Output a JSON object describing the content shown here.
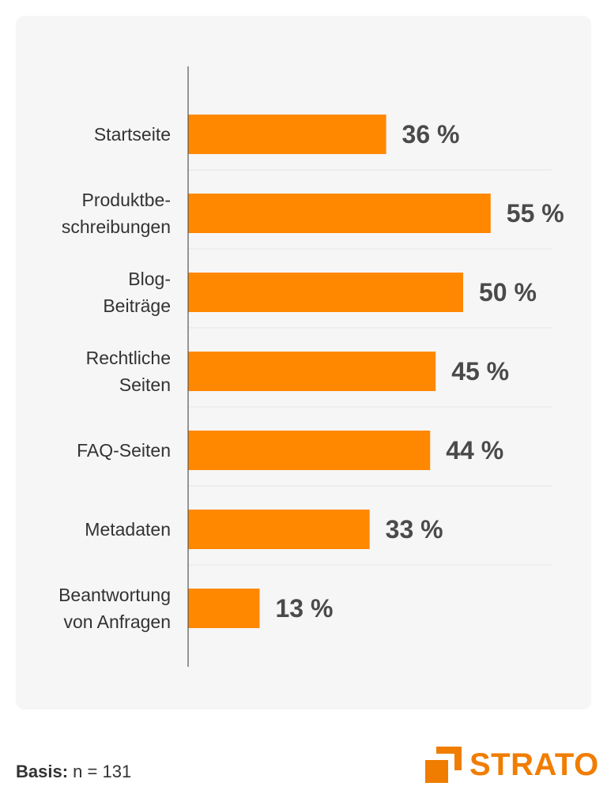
{
  "chart_data": {
    "type": "bar",
    "orientation": "horizontal",
    "categories": [
      [
        "Startseite"
      ],
      [
        "Produktbe-",
        "schreibungen"
      ],
      [
        "Blog-",
        "Beiträge"
      ],
      [
        "Rechtliche",
        "Seiten"
      ],
      [
        "FAQ-Seiten"
      ],
      [
        "Metadaten"
      ],
      [
        "Beantwortung",
        "von Anfragen"
      ]
    ],
    "values": [
      36,
      55,
      50,
      45,
      44,
      33,
      13
    ],
    "value_labels": [
      "36 %",
      "55 %",
      "50 %",
      "45 %",
      "44 %",
      "33 %",
      "13 %"
    ],
    "unit": "%",
    "bar_color": "#ff8800",
    "grid": false
  },
  "footer": {
    "basis_label": "Basis:",
    "basis_value": "n = 131"
  },
  "brand": {
    "name": "STRATO",
    "color": "#f07d00"
  }
}
